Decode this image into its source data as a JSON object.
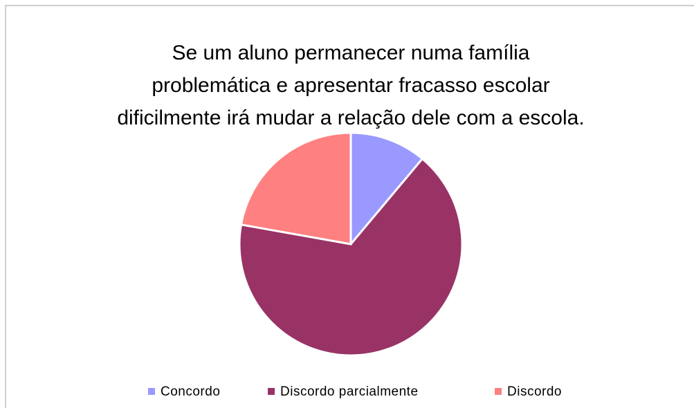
{
  "chart_data": {
    "type": "pie",
    "title": [
      "Se um aluno permanecer numa família",
      "problemática e apresentar fracasso escolar",
      "dificilmente irá mudar a relação dele com a escola."
    ],
    "categories": [
      "Concordo",
      "Discordo parcialmente",
      "Discordo"
    ],
    "values": [
      11.1,
      66.7,
      22.2
    ],
    "colors": [
      "#9999ff",
      "#993366",
      "#ff8080"
    ],
    "legend": "bottom"
  }
}
